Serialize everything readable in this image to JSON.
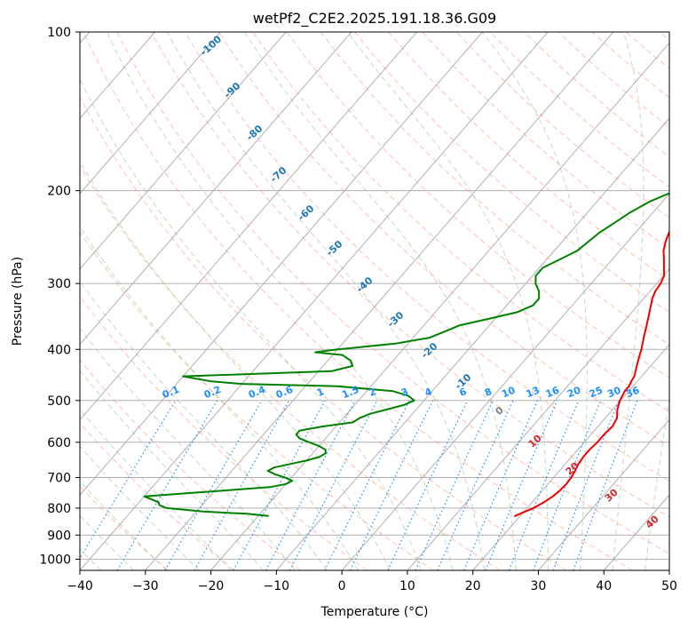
{
  "chart_data": {
    "type": "line",
    "title": "wetPf2_C2E2.2025.191.18.36.G09",
    "xlabel": "Temperature (°C)",
    "ylabel": "Pressure (hPa)",
    "xlim": [
      -40,
      50
    ],
    "ylim": [
      1050,
      100
    ],
    "y_scale": "log",
    "grid": true,
    "x_ticks": [
      "−40",
      "−30",
      "−20",
      "−10",
      "0",
      "10",
      "20",
      "30",
      "40",
      "50"
    ],
    "x_tick_values": [
      -40,
      -30,
      -20,
      -10,
      0,
      10,
      20,
      30,
      40,
      50
    ],
    "y_ticks": [
      "100",
      "200",
      "300",
      "400",
      "500",
      "600",
      "700",
      "800",
      "900",
      "1000"
    ],
    "y_tick_values": [
      100,
      200,
      300,
      400,
      500,
      600,
      700,
      800,
      900,
      1000
    ],
    "isotherm_labels": [
      "-100",
      "-90",
      "-80",
      "-70",
      "-60",
      "-50",
      "-40",
      "-30",
      "-20",
      "-10",
      "0",
      "10",
      "20",
      "30",
      "40"
    ],
    "isotherm_label_values": [
      -100,
      -90,
      -80,
      -70,
      -60,
      -50,
      -40,
      -30,
      -20,
      -10,
      0,
      10,
      20,
      30,
      40
    ],
    "mixing_ratio_labels": [
      "0.1",
      "0.2",
      "0.4",
      "0.6",
      "1",
      "1.5",
      "2",
      "3",
      "4",
      "6",
      "8",
      "10",
      "13",
      "16",
      "20",
      "25",
      "30",
      "36"
    ],
    "mixing_ratio_values": [
      0.1,
      0.2,
      0.4,
      0.6,
      1,
      1.5,
      2,
      3,
      4,
      6,
      8,
      10,
      13,
      16,
      20,
      25,
      30,
      36
    ],
    "colors": {
      "temperature": "#ee0000",
      "dewpoint": "#008000",
      "isotherm_positive": "#d62728",
      "isotherm_negative": "#1f77b4",
      "isotherm_zero": "#808080",
      "mixing_ratio": "#1e90ff",
      "dry_adiabat": "#ff8c69",
      "moist_adiabat": "#8fbc8f",
      "isobar_grid": "#b0b0b0"
    },
    "series": [
      {
        "id": "temperature",
        "p": [
          828,
          815,
          800,
          780,
          760,
          740,
          720,
          700,
          680,
          660,
          640,
          620,
          600,
          580,
          560,
          540,
          520,
          500,
          480,
          470,
          460,
          450,
          440,
          430,
          420,
          410,
          400,
          380,
          360,
          340,
          320,
          310,
          300,
          290,
          280,
          270,
          260,
          250,
          240,
          230,
          220,
          210,
          200,
          190,
          180,
          170,
          165,
          160,
          155,
          150,
          145,
          140,
          135,
          130,
          125,
          120,
          115,
          110,
          105,
          100
        ],
        "t": [
          19.2,
          20.0,
          21.0,
          21.8,
          22.4,
          22.7,
          22.8,
          22.7,
          22.4,
          22.0,
          21.8,
          21.8,
          22.0,
          22.0,
          22.2,
          21.8,
          20.7,
          19.9,
          19.4,
          19.4,
          19.1,
          18.9,
          18.4,
          17.9,
          17.4,
          16.9,
          16.4,
          15.2,
          14.0,
          12.7,
          11.3,
          10.8,
          10.6,
          10.1,
          9.0,
          7.9,
          6.7,
          5.8,
          5.1,
          4.6,
          4.1,
          3.6,
          3.2,
          3.0,
          2.4,
          1.6,
          0.9,
          0.1,
          -0.7,
          -1.4,
          -1.9,
          -2.0,
          -1.3,
          -0.4,
          0.4,
          1.1,
          2.1,
          3.3,
          4.6,
          6.0
        ]
      },
      {
        "id": "dewpoint",
        "p": [
          828,
          820,
          812,
          800,
          790,
          780,
          770,
          760,
          750,
          740,
          730,
          720,
          710,
          700,
          690,
          680,
          670,
          660,
          650,
          640,
          630,
          620,
          610,
          600,
          590,
          580,
          570,
          560,
          550,
          540,
          530,
          520,
          510,
          500,
          490,
          480,
          470,
          465,
          460,
          450,
          440,
          430,
          420,
          410,
          405,
          400,
          390,
          380,
          370,
          360,
          350,
          340,
          330,
          320,
          310,
          300,
          290,
          280,
          270,
          260,
          250,
          240,
          230,
          220,
          210,
          200,
          190,
          180,
          170,
          165,
          160,
          155,
          150,
          145,
          140,
          135,
          130,
          125,
          120,
          115,
          110,
          105,
          100
        ],
        "t": [
          -18.5,
          -22.0,
          -29.0,
          -35.0,
          -36.5,
          -37.0,
          -38.5,
          -40.0,
          -34.0,
          -28.0,
          -22.0,
          -20.0,
          -19.5,
          -21.0,
          -23.0,
          -24.5,
          -24.0,
          -22.0,
          -20.0,
          -18.5,
          -18.0,
          -18.5,
          -20.0,
          -22.0,
          -24.0,
          -25.0,
          -25.0,
          -22.0,
          -18.0,
          -17.5,
          -16.5,
          -14.5,
          -12.5,
          -11.5,
          -13.0,
          -16.0,
          -25.0,
          -40.0,
          -45.0,
          -50.0,
          -28.0,
          -25.5,
          -26.5,
          -28.5,
          -33.0,
          -30.0,
          -22.0,
          -17.5,
          -16.0,
          -14.5,
          -11.0,
          -7.5,
          -6.0,
          -6.0,
          -7.0,
          -8.5,
          -9.5,
          -9.5,
          -8.0,
          -6.5,
          -6.0,
          -5.5,
          -4.5,
          -3.5,
          -2.0,
          0.5,
          2.0,
          3.0,
          2.7,
          1.8,
          0.4,
          -0.5,
          -1.2,
          -1.5,
          -1.4,
          -0.4,
          -0.3,
          -0.2,
          0.1,
          0.6,
          1.2,
          1.9,
          2.3
        ]
      }
    ]
  }
}
